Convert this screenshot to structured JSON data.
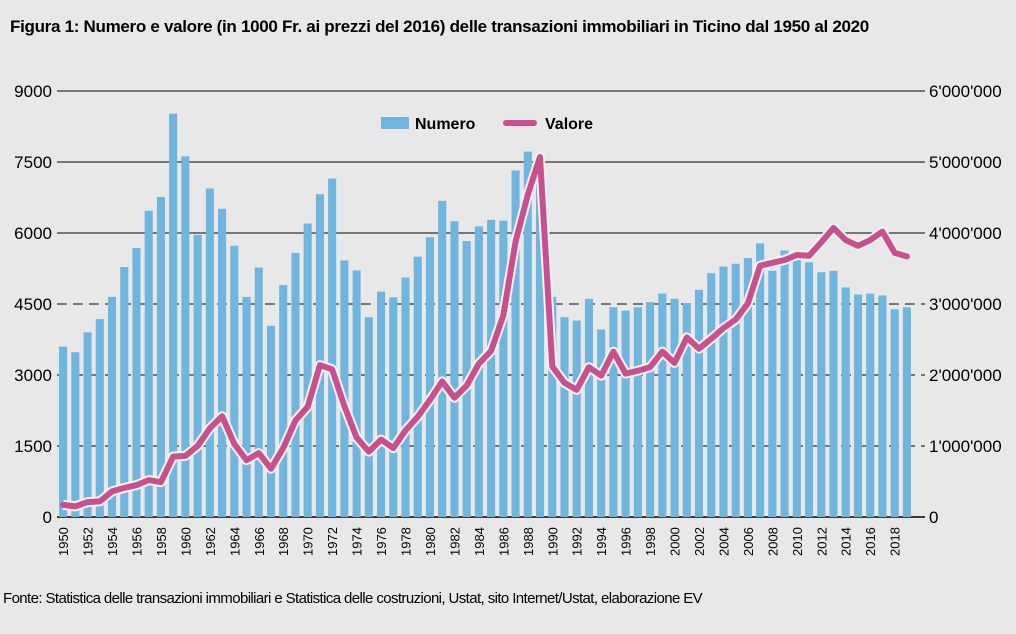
{
  "chart_data": {
    "type": "bar",
    "title": "Figura 1: Numero e valore (in 1000 Fr. ai prezzi del 2016) delle transazioni immobiliari in Ticino dal 1950 al 2020",
    "source": "Fonte: Statistica delle transazioni immobiliari e Statistica delle costruzioni, Ustat, sito Internet/Ustat, elaborazione EV",
    "xlabel": "",
    "ylabel_left": "",
    "ylabel_right": "",
    "ylim_left": [
      0,
      9000
    ],
    "ylim_right": [
      0,
      6000000
    ],
    "yticks_left": [
      "0",
      "1500",
      "3000",
      "4500",
      "6000",
      "7500",
      "9000"
    ],
    "yticks_right": [
      "0",
      "1'000'000",
      "2'000'000",
      "3'000'000",
      "4'000'000",
      "5'000'000",
      "6'000'000"
    ],
    "legend_position": "top-center",
    "grid": true,
    "colors": {
      "numero": "#6fb5de",
      "valore": "#c9508f"
    },
    "x": [
      1950,
      1951,
      1952,
      1953,
      1954,
      1955,
      1956,
      1957,
      1958,
      1959,
      1960,
      1961,
      1962,
      1963,
      1964,
      1965,
      1966,
      1967,
      1968,
      1969,
      1970,
      1971,
      1972,
      1973,
      1974,
      1975,
      1976,
      1977,
      1978,
      1979,
      1980,
      1981,
      1982,
      1983,
      1984,
      1985,
      1986,
      1987,
      1988,
      1989,
      1990,
      1991,
      1992,
      1993,
      1994,
      1995,
      1996,
      1997,
      1998,
      1999,
      2000,
      2001,
      2002,
      2003,
      2004,
      2005,
      2006,
      2007,
      2008,
      2009,
      2010,
      2011,
      2012,
      2013,
      2014,
      2015,
      2016,
      2017,
      2018,
      2019
    ],
    "xtick_labels": [
      "1950",
      "1952",
      "1954",
      "1956",
      "1958",
      "1960",
      "1962",
      "1964",
      "1966",
      "1968",
      "1970",
      "1972",
      "1974",
      "1976",
      "1978",
      "1980",
      "1982",
      "1984",
      "1986",
      "1988",
      "1990",
      "1992",
      "1994",
      "1996",
      "1998",
      "2000",
      "2002",
      "2004",
      "2006",
      "2008",
      "2010",
      "2012",
      "2014",
      "2016",
      "2018"
    ],
    "series": [
      {
        "name": "Numero",
        "type": "bar",
        "axis": "left",
        "values": [
          3600,
          3480,
          3900,
          4180,
          4650,
          5280,
          5680,
          6470,
          6760,
          8520,
          7620,
          5960,
          6940,
          6510,
          5730,
          4650,
          5270,
          4040,
          4900,
          5580,
          6200,
          6820,
          7150,
          5420,
          5210,
          4220,
          4760,
          4640,
          5060,
          5500,
          5910,
          6680,
          6250,
          5830,
          6140,
          6280,
          6260,
          7320,
          7720,
          7500,
          4650,
          4220,
          4150,
          4610,
          3960,
          4430,
          4360,
          4430,
          4540,
          4720,
          4610,
          4520,
          4800,
          5150,
          5290,
          5350,
          5470,
          5780,
          5200,
          5630,
          5590,
          5380,
          5170,
          5200,
          4850,
          4700,
          4720,
          4680,
          4390,
          4430
        ]
      },
      {
        "name": "Valore",
        "type": "line",
        "axis": "right",
        "values": [
          170000,
          150000,
          210000,
          220000,
          360000,
          410000,
          450000,
          520000,
          490000,
          850000,
          860000,
          1000000,
          1250000,
          1420000,
          1030000,
          800000,
          900000,
          680000,
          970000,
          1360000,
          1550000,
          2140000,
          2080000,
          1560000,
          1120000,
          920000,
          1090000,
          970000,
          1220000,
          1410000,
          1650000,
          1910000,
          1680000,
          1850000,
          2160000,
          2340000,
          2840000,
          3880000,
          4540000,
          5070000,
          2120000,
          1890000,
          1790000,
          2110000,
          1990000,
          2330000,
          2020000,
          2060000,
          2110000,
          2330000,
          2170000,
          2530000,
          2370000,
          2510000,
          2660000,
          2780000,
          3010000,
          3540000,
          3580000,
          3620000,
          3690000,
          3680000,
          3870000,
          4070000,
          3900000,
          3820000,
          3900000,
          4020000,
          3720000,
          3670000
        ]
      }
    ]
  }
}
